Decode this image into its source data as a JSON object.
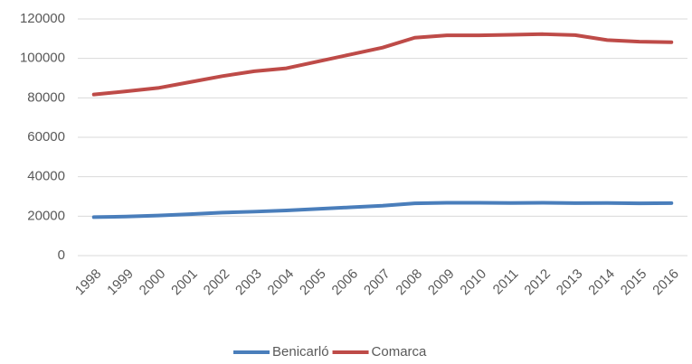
{
  "chart_data": {
    "type": "line",
    "categories": [
      "1998",
      "1999",
      "2000",
      "2001",
      "2002",
      "2003",
      "2004",
      "2005",
      "2006",
      "2007",
      "2008",
      "2009",
      "2010",
      "2011",
      "2012",
      "2013",
      "2014",
      "2015",
      "2016"
    ],
    "series": [
      {
        "name": "Benicarló",
        "color": "#4a7ebb",
        "values": [
          19500,
          19800,
          20300,
          21000,
          21800,
          22300,
          22900,
          23700,
          24500,
          25300,
          26500,
          26800,
          26800,
          26700,
          26800,
          26600,
          26700,
          26500,
          26600
        ]
      },
      {
        "name": "Comarca",
        "color": "#be4b48",
        "values": [
          81700,
          83300,
          85000,
          88000,
          91000,
          93500,
          95000,
          98500,
          102000,
          105500,
          110500,
          111700,
          111700,
          112000,
          112300,
          111800,
          109300,
          108500,
          108200
        ]
      }
    ],
    "ylim": [
      0,
      120000
    ],
    "yticks": [
      0,
      20000,
      40000,
      60000,
      80000,
      100000,
      120000
    ],
    "grid": true,
    "legend": "bottom"
  }
}
